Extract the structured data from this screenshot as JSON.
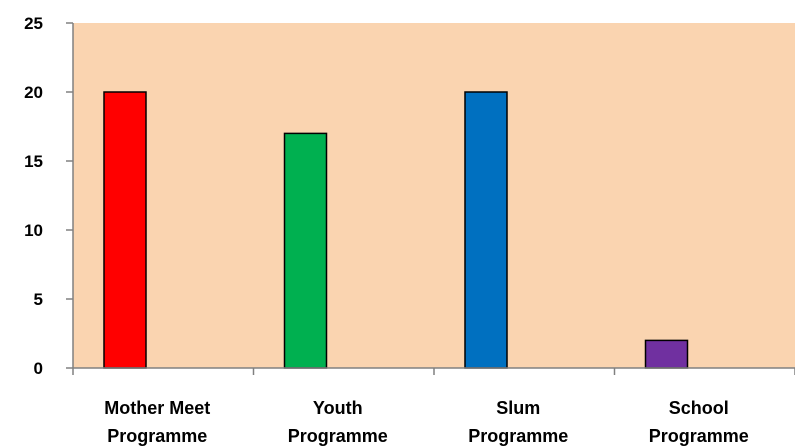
{
  "chart_data": {
    "type": "bar",
    "categories": [
      [
        "Mother Meet",
        "Programme"
      ],
      [
        "Youth",
        "Programme"
      ],
      [
        "Slum",
        "Programme"
      ],
      [
        "School",
        "Programme"
      ]
    ],
    "values": [
      20,
      17,
      20,
      2
    ],
    "colors": [
      "#ff0000",
      "#00b050",
      "#0070c0",
      "#7030a0"
    ],
    "ylim": [
      0,
      25
    ],
    "yticks": [
      "0",
      "5",
      "10",
      "15",
      "20",
      "25"
    ],
    "grid": false,
    "legend": "none",
    "title": "",
    "xlabel": "",
    "ylabel": "",
    "plot_background": "#fad4b0",
    "bar_outline": "#000000"
  }
}
